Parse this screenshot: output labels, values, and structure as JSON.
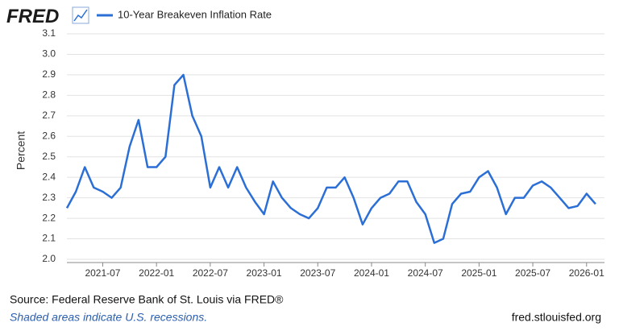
{
  "chart_data": {
    "type": "line",
    "logo": "FRED",
    "y_label": "Percent",
    "source": "Source: Federal Reserve Bank of St. Louis via FRED®",
    "note": "Shaded areas indicate U.S. recessions.",
    "site": "fred.stlouisfed.org",
    "x": [
      "2021-03",
      "2021-04",
      "2021-05",
      "2021-06",
      "2021-07",
      "2021-08",
      "2021-09",
      "2021-10",
      "2021-11",
      "2021-12",
      "2022-01",
      "2022-02",
      "2022-03",
      "2022-04",
      "2022-05",
      "2022-06",
      "2022-07",
      "2022-08",
      "2022-09",
      "2022-10",
      "2022-11",
      "2022-12",
      "2023-01",
      "2023-02",
      "2023-03",
      "2023-04",
      "2023-05",
      "2023-06",
      "2023-07",
      "2023-08",
      "2023-09",
      "2023-10",
      "2023-11",
      "2023-12",
      "2024-01",
      "2024-02",
      "2024-03",
      "2024-04",
      "2024-05",
      "2024-06",
      "2024-07",
      "2024-08",
      "2024-09",
      "2024-10",
      "2024-11",
      "2024-12",
      "2025-01",
      "2025-02",
      "2025-03",
      "2025-04",
      "2025-05",
      "2025-06",
      "2025-07",
      "2025-08",
      "2025-09",
      "2025-10",
      "2025-11",
      "2025-12",
      "2026-01",
      "2026-02"
    ],
    "series": [
      {
        "name": "10-Year Breakeven Inflation Rate",
        "color": "#2b6fd6",
        "values": [
          2.25,
          2.33,
          2.45,
          2.35,
          2.33,
          2.3,
          2.35,
          2.55,
          2.68,
          2.45,
          2.45,
          2.5,
          2.85,
          2.9,
          2.7,
          2.6,
          2.35,
          2.45,
          2.35,
          2.45,
          2.35,
          2.28,
          2.22,
          2.38,
          2.3,
          2.25,
          2.22,
          2.2,
          2.25,
          2.35,
          2.35,
          2.4,
          2.3,
          2.17,
          2.25,
          2.3,
          2.32,
          2.38,
          2.38,
          2.28,
          2.22,
          2.08,
          2.1,
          2.27,
          2.32,
          2.33,
          2.4,
          2.43,
          2.35,
          2.22,
          2.3,
          2.3,
          2.36,
          2.38,
          2.35,
          2.3,
          2.25,
          2.26,
          2.32,
          2.27
        ]
      }
    ],
    "xlim": [
      "2021-03",
      "2026-03"
    ],
    "xticks": [
      "2021-07",
      "2022-01",
      "2022-07",
      "2023-01",
      "2023-07",
      "2024-01",
      "2024-07",
      "2025-01",
      "2025-07",
      "2026-01"
    ],
    "ylim": [
      2.0,
      3.1
    ],
    "yticks": [
      {
        "value": 2,
        "label": "2.0"
      },
      2.1,
      2.2,
      2.3,
      2.4,
      2.5,
      2.6,
      2.7,
      2.8,
      2.9,
      {
        "value": 3,
        "label": "3.0"
      },
      3.1
    ],
    "grid": true
  }
}
